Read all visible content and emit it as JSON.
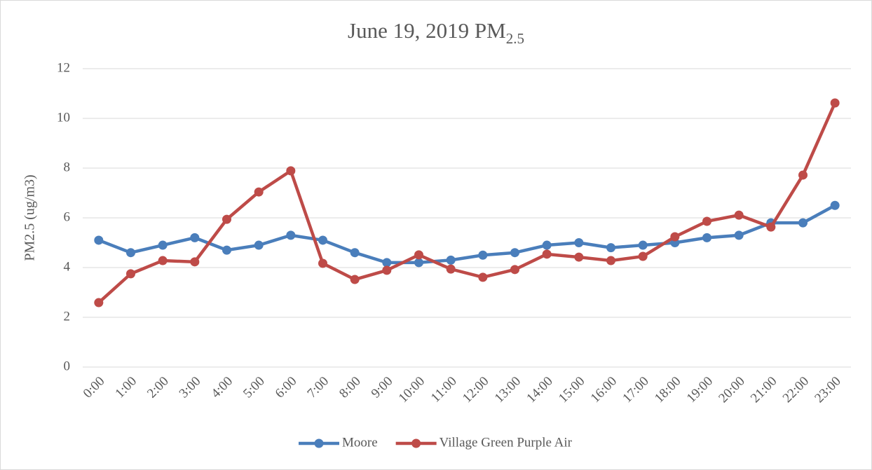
{
  "chart_data": {
    "type": "line",
    "title": {
      "text": "June 19, 2019 PM",
      "subscript": "2.5"
    },
    "y_label": "PM2.5 (ug/m3)",
    "categories": [
      "0:00",
      "1:00",
      "2:00",
      "3:00",
      "4:00",
      "5:00",
      "6:00",
      "7:00",
      "8:00",
      "9:00",
      "10:00",
      "11:00",
      "12:00",
      "13:00",
      "14:00",
      "15:00",
      "16:00",
      "17:00",
      "18:00",
      "19:00",
      "20:00",
      "21:00",
      "22:00",
      "23:00"
    ],
    "series": [
      {
        "name": "Moore",
        "color": "#4a7ebb",
        "values": [
          5.1,
          4.6,
          4.9,
          5.2,
          4.7,
          4.9,
          5.3,
          5.1,
          4.6,
          4.2,
          4.2,
          4.3,
          4.5,
          4.6,
          4.9,
          5.0,
          4.8,
          4.9,
          5.0,
          5.2,
          5.3,
          5.8,
          5.8,
          6.5
        ]
      },
      {
        "name": "Village Green Purple Air",
        "color": "#be4b48",
        "values": [
          2.59,
          3.75,
          4.28,
          4.23,
          5.94,
          7.04,
          7.89,
          4.17,
          3.52,
          3.89,
          4.51,
          3.94,
          3.61,
          3.92,
          4.54,
          4.42,
          4.28,
          4.45,
          5.24,
          5.86,
          6.11,
          5.63,
          7.72,
          10.62
        ]
      }
    ],
    "ylim": [
      0,
      12
    ],
    "yticks": [
      0,
      2,
      4,
      6,
      8,
      10,
      12
    ],
    "grid": true,
    "legend": "bottom"
  }
}
